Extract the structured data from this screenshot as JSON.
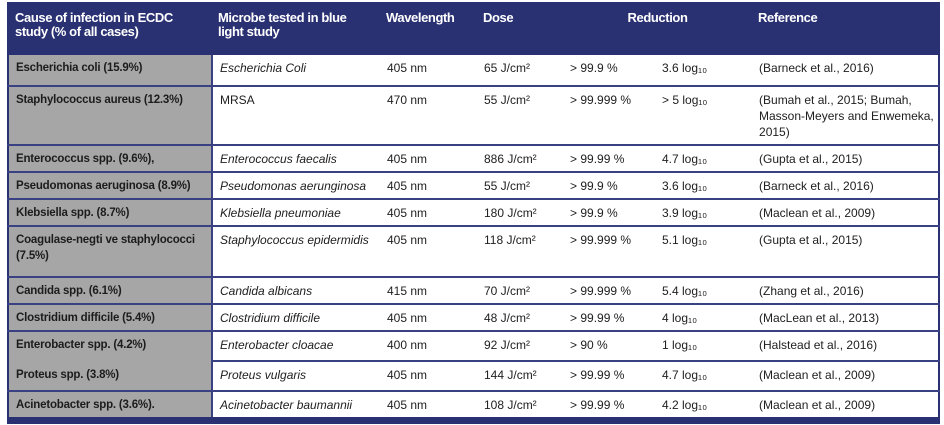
{
  "colors": {
    "header_bg": "#2a3173",
    "header_text": "#ffffff",
    "row_border": "#3a4183",
    "cause_column_bg": "#a6a6a6",
    "body_text": "#202020"
  },
  "table": {
    "headers": {
      "cause": "Cause of infection in ECDC study (% of all cases)",
      "microbe": "Microbe tested in blue light study",
      "wavelength": "Wavelength",
      "dose": "Dose",
      "reduction": "Reduction",
      "reference": "Reference"
    },
    "rows": [
      {
        "cause": "Escherichia coli (15.9%)",
        "microbe": "Escherichia Coli",
        "microbe_italic": true,
        "wavelength": "405 nm",
        "dose": "65 J/cm²",
        "reduction_pct": "> 99.9 %",
        "reduction_log": "3.6 log₁₀",
        "reference": "(Barneck et al., 2016)"
      },
      {
        "cause": "Staphylococcus aureus (12.3%)",
        "microbe": "MRSA",
        "microbe_italic": false,
        "wavelength": "470 nm",
        "dose": "55 J/cm²",
        "reduction_pct": "> 99.999 %",
        "reduction_log": "> 5 log₁₀",
        "reference": "(Bumah et al., 2015; Bumah, Masson-Meyers and Enwemeka, 2015)"
      },
      {
        "cause": "Enterococcus spp. (9.6%),",
        "microbe": "Enterococcus faecalis",
        "microbe_italic": true,
        "wavelength": "405 nm",
        "dose": "886 J/cm²",
        "reduction_pct": "> 99.99 %",
        "reduction_log": "4.7 log₁₀",
        "reference": "(Gupta et al., 2015)"
      },
      {
        "cause": "Pseudomonas aeruginosa (8.9%)",
        "microbe": "Pseudomonas aerunginosa",
        "microbe_italic": true,
        "wavelength": "405 nm",
        "dose": "55 J/cm²",
        "reduction_pct": "> 99.9 %",
        "reduction_log": "3.6 log₁₀",
        "reference": "(Barneck et al., 2016)"
      },
      {
        "cause": "Klebsiella spp. (8.7%)",
        "microbe": "Klebsiella pneumoniae",
        "microbe_italic": true,
        "wavelength": "405 nm",
        "dose": "180 J/cm²",
        "reduction_pct": "> 99.9 %",
        "reduction_log": "3.9 log₁₀",
        "reference": "(Maclean et al., 2009)"
      },
      {
        "cause": "Coagulase-negti ve staphylococci (7.5%)",
        "microbe": "Staphylococcus epidermidis",
        "microbe_italic": true,
        "wavelength": "405 nm",
        "dose": "118 J/cm²",
        "reduction_pct": "> 99.999 %",
        "reduction_log": "5.1 log₁₀",
        "reference": "(Gupta et al., 2015)"
      },
      {
        "cause": "Candida spp. (6.1%)",
        "microbe": "Candida albicans",
        "microbe_italic": true,
        "wavelength": "415 nm",
        "dose": "70 J/cm²",
        "reduction_pct": "> 99.999 %",
        "reduction_log": "5.4 log₁₀",
        "reference": "(Zhang et al., 2016)"
      },
      {
        "cause": "Clostridium difficile (5.4%)",
        "microbe": "Clostridium difficile",
        "microbe_italic": true,
        "wavelength": "405 nm",
        "dose": "48 J/cm²",
        "reduction_pct": "> 99.99 %",
        "reduction_log": "4 log₁₀",
        "reference": "(MacLean et al., 2013)"
      },
      {
        "cause": "Enterobacter spp. (4.2%)",
        "cause_rowspan": 2,
        "cause_secondary": "Proteus spp. (3.8%)",
        "microbe": "Enterobacter cloacae",
        "microbe_italic": true,
        "wavelength": "400 nm",
        "dose": "92 J/cm²",
        "reduction_pct": "> 90 %",
        "reduction_log": "1 log₁₀",
        "reference": "(Halstead et al., 2016)"
      },
      {
        "cause": null,
        "microbe": "Proteus vulgaris",
        "microbe_italic": true,
        "wavelength": "405 nm",
        "dose": "144 J/cm²",
        "reduction_pct": "> 99.99 %",
        "reduction_log": "4.7 log₁₀",
        "reference": "(Maclean et al., 2009)"
      },
      {
        "cause": "Acinetobacter spp. (3.6%).",
        "microbe": "Acinetobacter baumannii",
        "microbe_italic": true,
        "wavelength": "405 nm",
        "dose": "108 J/cm²",
        "reduction_pct": "> 99.99 %",
        "reduction_log": "4.2 log₁₀",
        "reference": "(Maclean et al., 2009)"
      }
    ]
  }
}
